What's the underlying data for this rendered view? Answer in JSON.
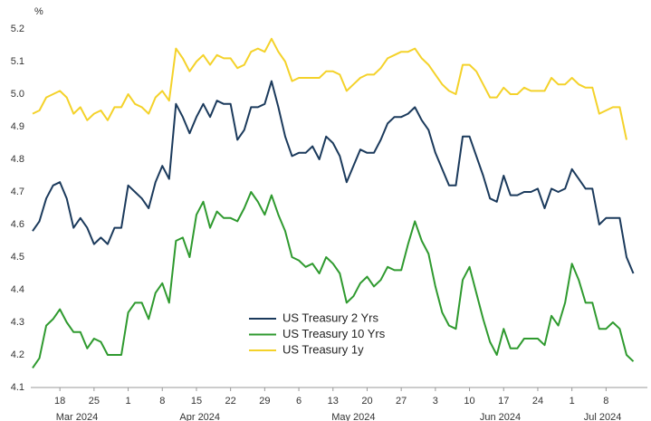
{
  "chart_data": {
    "type": "line",
    "y_label": "%",
    "x": [
      "2024-03-12",
      "2024-03-13",
      "2024-03-14",
      "2024-03-15",
      "2024-03-18",
      "2024-03-19",
      "2024-03-20",
      "2024-03-21",
      "2024-03-22",
      "2024-03-25",
      "2024-03-26",
      "2024-03-27",
      "2024-03-28",
      "2024-03-29",
      "2024-04-01",
      "2024-04-02",
      "2024-04-03",
      "2024-04-04",
      "2024-04-05",
      "2024-04-08",
      "2024-04-09",
      "2024-04-10",
      "2024-04-11",
      "2024-04-12",
      "2024-04-15",
      "2024-04-16",
      "2024-04-17",
      "2024-04-18",
      "2024-04-19",
      "2024-04-22",
      "2024-04-23",
      "2024-04-24",
      "2024-04-25",
      "2024-04-26",
      "2024-04-29",
      "2024-04-30",
      "2024-05-01",
      "2024-05-02",
      "2024-05-03",
      "2024-05-06",
      "2024-05-07",
      "2024-05-08",
      "2024-05-09",
      "2024-05-10",
      "2024-05-13",
      "2024-05-14",
      "2024-05-15",
      "2024-05-16",
      "2024-05-17",
      "2024-05-20",
      "2024-05-21",
      "2024-05-22",
      "2024-05-23",
      "2024-05-24",
      "2024-05-27",
      "2024-05-28",
      "2024-05-29",
      "2024-05-30",
      "2024-05-31",
      "2024-06-03",
      "2024-06-04",
      "2024-06-05",
      "2024-06-06",
      "2024-06-07",
      "2024-06-10",
      "2024-06-11",
      "2024-06-12",
      "2024-06-13",
      "2024-06-14",
      "2024-06-17",
      "2024-06-18",
      "2024-06-19",
      "2024-06-20",
      "2024-06-21",
      "2024-06-24",
      "2024-06-25",
      "2024-06-26",
      "2024-06-27",
      "2024-06-28",
      "2024-07-01",
      "2024-07-02",
      "2024-07-03",
      "2024-07-04",
      "2024-07-05",
      "2024-07-08",
      "2024-07-09",
      "2024-07-10",
      "2024-07-11",
      "2024-07-12"
    ],
    "xticks": [
      {
        "value": "2024-03-18",
        "label": "18"
      },
      {
        "value": "2024-03-25",
        "label": "25"
      },
      {
        "value": "2024-04-01",
        "label": "1"
      },
      {
        "value": "2024-04-08",
        "label": "8"
      },
      {
        "value": "2024-04-15",
        "label": "15"
      },
      {
        "value": "2024-04-22",
        "label": "22"
      },
      {
        "value": "2024-04-29",
        "label": "29"
      },
      {
        "value": "2024-05-06",
        "label": "6"
      },
      {
        "value": "2024-05-13",
        "label": "13"
      },
      {
        "value": "2024-05-20",
        "label": "20"
      },
      {
        "value": "2024-05-27",
        "label": "27"
      },
      {
        "value": "2024-06-03",
        "label": "3"
      },
      {
        "value": "2024-06-10",
        "label": "10"
      },
      {
        "value": "2024-06-17",
        "label": "17"
      },
      {
        "value": "2024-06-24",
        "label": "24"
      },
      {
        "value": "2024-07-01",
        "label": "1"
      },
      {
        "value": "2024-07-08",
        "label": "8"
      }
    ],
    "months": [
      {
        "value": "2024-03",
        "label": "Mar 2024"
      },
      {
        "value": "2024-04",
        "label": "Apr 2024"
      },
      {
        "value": "2024-05",
        "label": "May 2024"
      },
      {
        "value": "2024-06",
        "label": "Jun 2024"
      },
      {
        "value": "2024-07",
        "label": "Jul 2024"
      }
    ],
    "ylim": [
      4.1,
      5.2
    ],
    "yticks": [
      4.1,
      4.2,
      4.3,
      4.4,
      4.5,
      4.6,
      4.7,
      4.8,
      4.9,
      {
        "value": 5,
        "label": "5.0"
      },
      5.1,
      5.2
    ],
    "grid": false,
    "legend": "lower-center",
    "series": [
      {
        "name": "US Treasury 2 Yrs",
        "color": "#1b3a5c",
        "values": [
          4.58,
          4.61,
          4.68,
          4.72,
          4.73,
          4.68,
          4.59,
          4.62,
          4.59,
          4.54,
          4.56,
          4.54,
          4.59,
          4.59,
          4.72,
          4.7,
          4.68,
          4.65,
          4.73,
          4.78,
          4.74,
          4.97,
          4.93,
          4.88,
          4.93,
          4.97,
          4.93,
          4.98,
          4.97,
          4.97,
          4.86,
          4.89,
          4.96,
          4.96,
          4.97,
          5.04,
          4.96,
          4.87,
          4.81,
          4.82,
          4.82,
          4.84,
          4.8,
          4.87,
          4.85,
          4.81,
          4.73,
          4.78,
          4.83,
          4.82,
          4.82,
          4.86,
          4.91,
          4.93,
          4.93,
          4.94,
          4.96,
          4.92,
          4.89,
          4.82,
          4.77,
          4.72,
          4.72,
          4.87,
          4.87,
          4.81,
          4.75,
          4.68,
          4.67,
          4.75,
          4.69,
          4.69,
          4.7,
          4.7,
          4.71,
          4.65,
          4.71,
          4.7,
          4.71,
          4.77,
          4.74,
          4.71,
          4.71,
          4.6,
          4.62,
          4.62,
          4.62,
          4.5,
          4.45
        ]
      },
      {
        "name": "US Treasury 10 Yrs",
        "color": "#2f9a2f",
        "values": [
          4.16,
          4.19,
          4.29,
          4.31,
          4.34,
          4.3,
          4.27,
          4.27,
          4.22,
          4.25,
          4.24,
          4.2,
          4.2,
          4.2,
          4.33,
          4.36,
          4.36,
          4.31,
          4.39,
          4.42,
          4.36,
          4.55,
          4.56,
          4.5,
          4.63,
          4.67,
          4.59,
          4.64,
          4.62,
          4.62,
          4.61,
          4.65,
          4.7,
          4.67,
          4.63,
          4.69,
          4.63,
          4.58,
          4.5,
          4.49,
          4.47,
          4.48,
          4.45,
          4.5,
          4.48,
          4.45,
          4.36,
          4.38,
          4.42,
          4.44,
          4.41,
          4.43,
          4.47,
          4.46,
          4.46,
          4.54,
          4.61,
          4.55,
          4.51,
          4.41,
          4.33,
          4.29,
          4.28,
          4.43,
          4.47,
          4.39,
          4.31,
          4.24,
          4.2,
          4.28,
          4.22,
          4.22,
          4.25,
          4.25,
          4.25,
          4.23,
          4.32,
          4.29,
          4.36,
          4.48,
          4.43,
          4.36,
          4.36,
          4.28,
          4.28,
          4.3,
          4.28,
          4.2,
          4.18
        ]
      },
      {
        "name": "US Treasury 1y",
        "color": "#f4d22a",
        "values": [
          4.94,
          4.95,
          4.99,
          5.0,
          5.01,
          4.99,
          4.94,
          4.96,
          4.92,
          4.94,
          4.95,
          4.92,
          4.96,
          4.96,
          5.0,
          4.97,
          4.96,
          4.94,
          4.99,
          5.01,
          4.98,
          5.14,
          5.11,
          5.07,
          5.1,
          5.12,
          5.09,
          5.12,
          5.11,
          5.11,
          5.08,
          5.09,
          5.13,
          5.14,
          5.13,
          5.17,
          5.13,
          5.1,
          5.04,
          5.05,
          5.05,
          5.05,
          5.05,
          5.07,
          5.07,
          5.06,
          5.01,
          5.03,
          5.05,
          5.06,
          5.06,
          5.08,
          5.11,
          5.12,
          5.13,
          5.13,
          5.14,
          5.11,
          5.09,
          5.06,
          5.03,
          5.01,
          5.0,
          5.09,
          5.09,
          5.07,
          5.03,
          4.99,
          4.99,
          5.02,
          5.0,
          5.0,
          5.02,
          5.01,
          5.01,
          5.01,
          5.05,
          5.03,
          5.03,
          5.05,
          5.03,
          5.02,
          5.02,
          4.94,
          4.95,
          4.96,
          4.96,
          4.86,
          null
        ]
      }
    ]
  }
}
